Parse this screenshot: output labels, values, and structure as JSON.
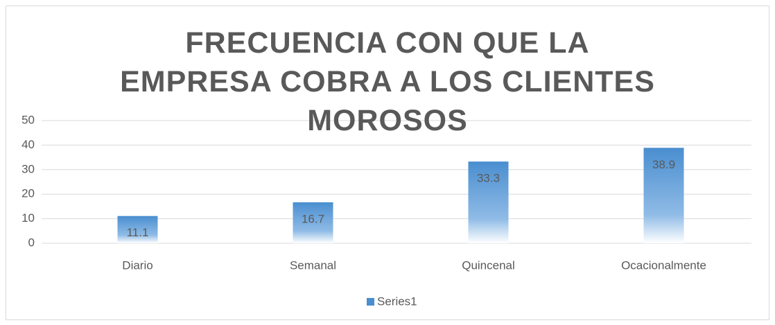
{
  "chart_data": {
    "type": "bar",
    "title": "FRECUENCIA CON QUE LA EMPRESA COBRA A LOS CLIENTES MOROSOS",
    "categories": [
      "Diario",
      "Semanal",
      "Quincenal",
      "Ocacionalmente"
    ],
    "series": [
      {
        "name": "Series1",
        "color": "#4a8ed0",
        "values": [
          11.1,
          16.7,
          33.3,
          38.9
        ]
      }
    ],
    "ylim": [
      0,
      50
    ],
    "yticks": [
      0,
      10,
      20,
      30,
      40,
      50
    ],
    "grid": true,
    "legend": "bottom"
  }
}
